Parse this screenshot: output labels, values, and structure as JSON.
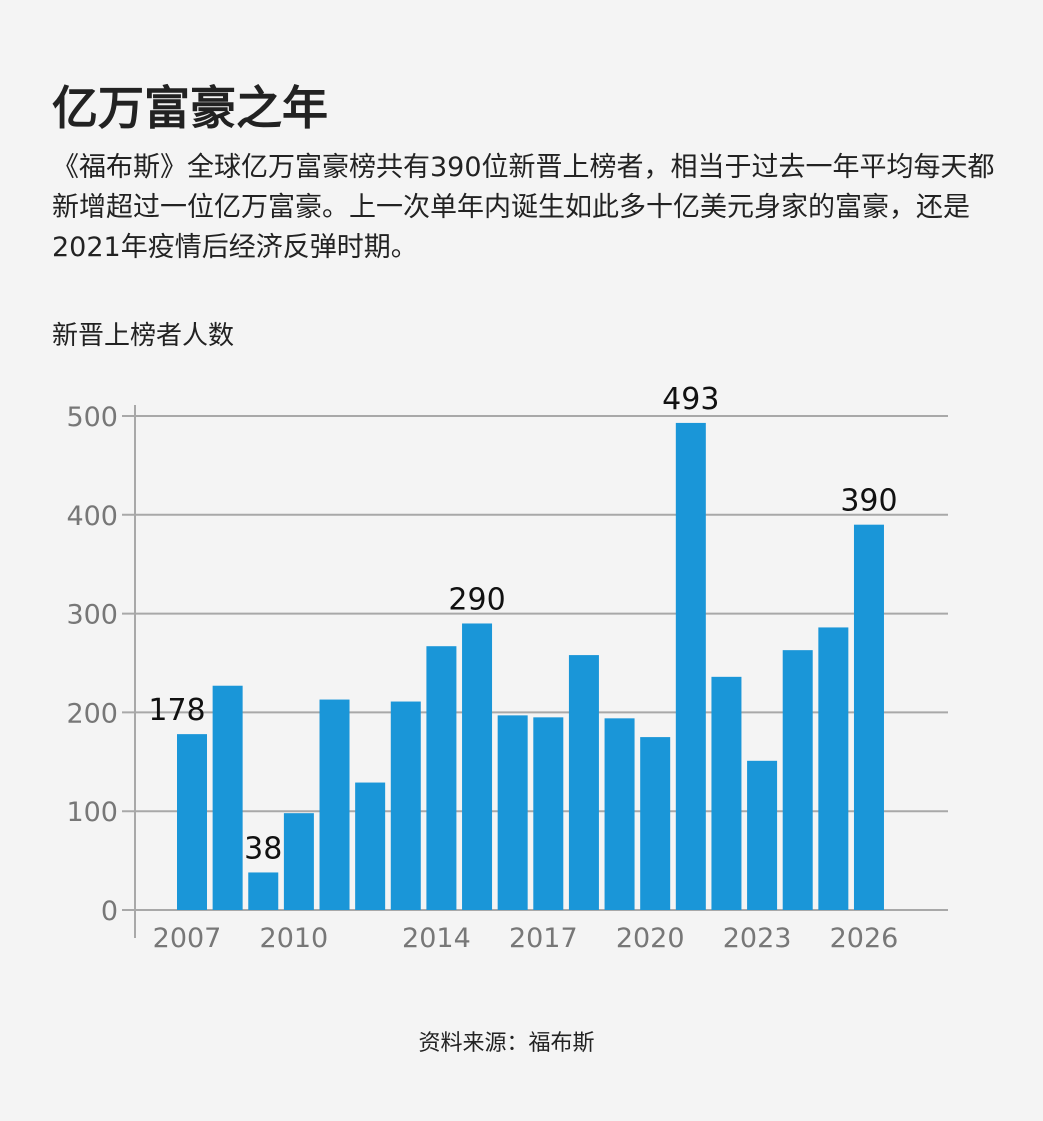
{
  "title": "亿万富豪之年",
  "description": "《福布斯》全球亿万富豪榜共有390位新晋上榜者，相当于过去一年平均每天都新增超过一位亿万富豪。上一次单年内诞生如此多十亿美元身家的富豪，还是2021年疫情后经济反弹时期。",
  "source": "资料来源：福布斯",
  "chart_data": {
    "type": "bar",
    "title": "",
    "ylabel": "新晋上榜者人数",
    "xlabel": "",
    "ylim": [
      0,
      500
    ],
    "yticks": [
      0,
      100,
      200,
      300,
      400,
      500
    ],
    "xtick_labels": [
      "2007",
      "2010",
      "2014",
      "2017",
      "2020",
      "2023",
      "2026"
    ],
    "categories": [
      "2007",
      "2008",
      "2009",
      "2010",
      "2011",
      "2012",
      "2013",
      "2014",
      "2015",
      "2016",
      "2017",
      "2018",
      "2019",
      "2020",
      "2021",
      "2022",
      "2023",
      "2024",
      "2025",
      "2026"
    ],
    "values": [
      178,
      227,
      38,
      98,
      213,
      129,
      211,
      267,
      290,
      197,
      195,
      258,
      194,
      175,
      493,
      236,
      151,
      263,
      286,
      390
    ],
    "data_labels": {
      "2007": "178",
      "2009": "38",
      "2015": "290",
      "2021": "493",
      "2026": "390"
    },
    "grid": true,
    "bar_color": "#1a96d8"
  }
}
